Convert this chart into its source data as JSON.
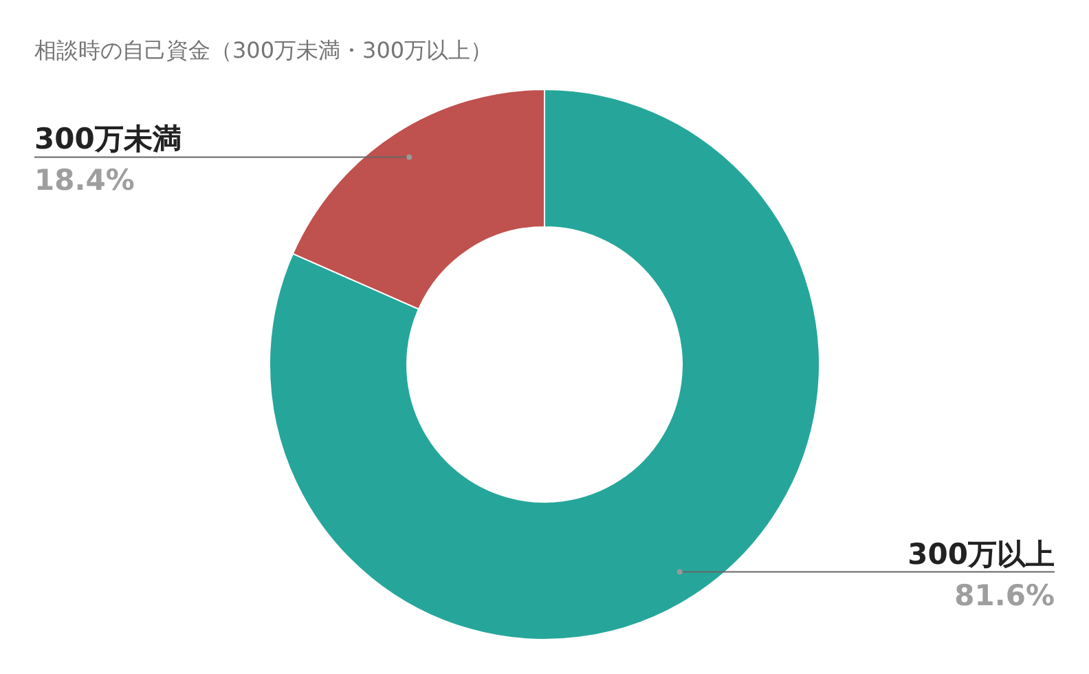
{
  "chart_data": {
    "type": "donut",
    "title": "相談時の自己資金（300万未満・300万以上）",
    "categories": [
      "300万以上",
      "300万未満"
    ],
    "values": [
      81.6,
      18.4
    ],
    "value_labels": [
      "81.6%",
      "18.4%"
    ],
    "colors": [
      "#26a69a",
      "#bf514e"
    ]
  }
}
